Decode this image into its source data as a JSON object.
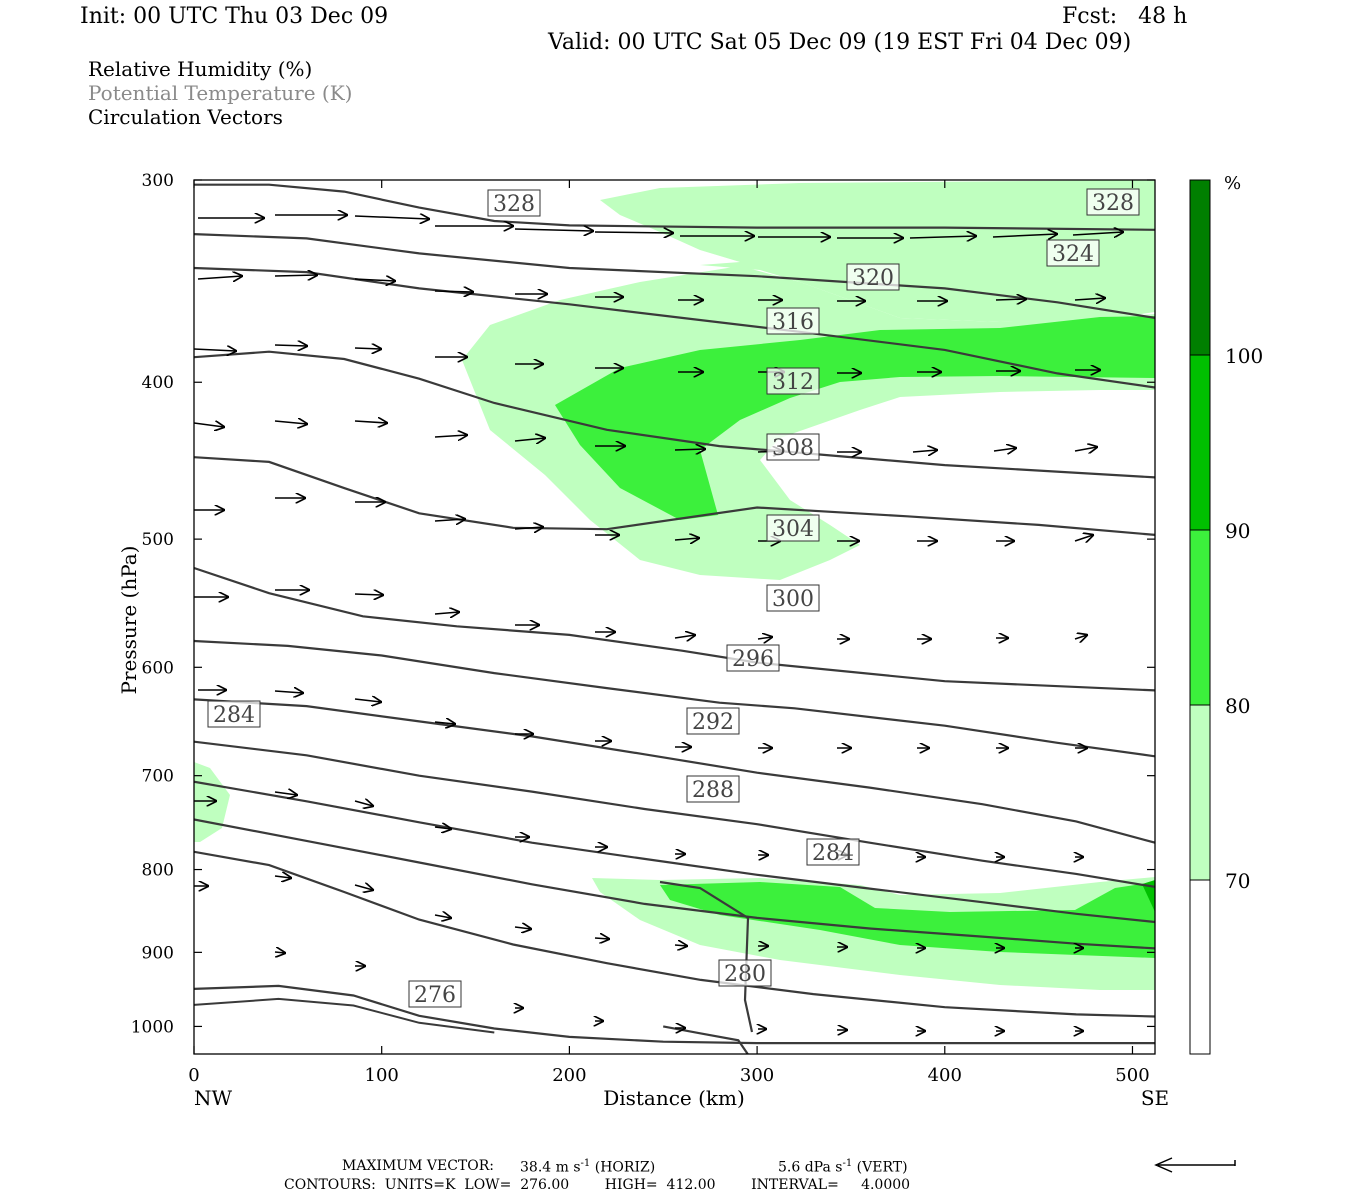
{
  "header": {
    "init": "Init: 00 UTC Thu 03 Dec 09",
    "fcst": "Fcst:   48 h",
    "valid": "Valid: 00 UTC Sat 05 Dec 09 (19 EST Fri 04 Dec 09)"
  },
  "legend": {
    "line1": "Relative Humidity (%)",
    "line2": "Potential Temperature (K)",
    "line3": "Circulation Vectors"
  },
  "footer": {
    "max_vector_label": "MAXIMUM VECTOR:",
    "horiz": "38.4 m s",
    "horiz_tag": "(HORIZ)",
    "vert": "5.6 dPa s",
    "vert_tag": "(VERT)",
    "exponent": "-1",
    "contours": "CONTOURS:  UNITS=K  LOW=  276.00        HIGH=  412.00        INTERVAL=     4.0000"
  },
  "colors": {
    "rh_70": "#bfffbf",
    "rh_80": "#3cf03c",
    "rh_90": "#00c000",
    "rh_100": "#007f00",
    "contour": "#3a3a3a",
    "vector": "#000000"
  },
  "colorbar": {
    "unit": "%",
    "labels": [
      "70",
      "80",
      "90",
      "100"
    ]
  },
  "chart_data": {
    "type": "cross-section",
    "xlabel": "Distance (km)",
    "ylabel": "Pressure (hPa)",
    "xlim": [
      0,
      512
    ],
    "ylim_hpa": [
      1040,
      300
    ],
    "y_log_scale": true,
    "x_ticks": [
      "0",
      "100",
      "200",
      "300",
      "400",
      "500"
    ],
    "x_tick_values": [
      0,
      100,
      200,
      300,
      400,
      500
    ],
    "y_ticks": [
      "300",
      "400",
      "500",
      "600",
      "700",
      "800",
      "900",
      "1000"
    ],
    "y_tick_values": [
      300,
      400,
      500,
      600,
      700,
      800,
      900,
      1000
    ],
    "x_end_labels": [
      "NW",
      "SE"
    ],
    "theta_contours": [
      {
        "value": 328,
        "points": [
          [
            0,
            302
          ],
          [
            40,
            302
          ],
          [
            80,
            305
          ],
          [
            120,
            312
          ],
          [
            160,
            318
          ],
          [
            200,
            320
          ],
          [
            300,
            321
          ],
          [
            400,
            321
          ],
          [
            512,
            322
          ]
        ]
      },
      {
        "value": 324,
        "points": [
          [
            0,
            324
          ],
          [
            60,
            326
          ],
          [
            120,
            333
          ],
          [
            200,
            340
          ],
          [
            300,
            344
          ],
          [
            400,
            350
          ],
          [
            460,
            357
          ],
          [
            512,
            365
          ]
        ]
      },
      {
        "value": 320,
        "points": [
          [
            0,
            340
          ],
          [
            60,
            342
          ],
          [
            120,
            350
          ],
          [
            200,
            358
          ],
          [
            260,
            365
          ],
          [
            320,
            372
          ],
          [
            400,
            382
          ],
          [
            460,
            395
          ],
          [
            512,
            403
          ]
        ]
      },
      {
        "value": 316,
        "points": [
          [
            0,
            386
          ],
          [
            40,
            383
          ],
          [
            80,
            387
          ],
          [
            120,
            398
          ],
          [
            160,
            412
          ],
          [
            220,
            428
          ],
          [
            280,
            438
          ],
          [
            320,
            442
          ],
          [
            400,
            450
          ],
          [
            512,
            458
          ]
        ]
      },
      {
        "value": 312,
        "points": [
          [
            0,
            445
          ],
          [
            40,
            448
          ],
          [
            80,
            465
          ],
          [
            120,
            482
          ],
          [
            170,
            492
          ],
          [
            220,
            493
          ],
          [
            300,
            478
          ],
          [
            380,
            484
          ],
          [
            450,
            490
          ],
          [
            512,
            497
          ]
        ]
      },
      {
        "value": 308,
        "points": [
          [
            0,
            521
          ],
          [
            40,
            540
          ],
          [
            90,
            558
          ],
          [
            140,
            566
          ],
          [
            200,
            573
          ],
          [
            260,
            586
          ],
          [
            300,
            596
          ],
          [
            400,
            612
          ],
          [
            512,
            620
          ]
        ]
      },
      {
        "value": 304,
        "points": [
          [
            0,
            578
          ],
          [
            50,
            582
          ],
          [
            100,
            590
          ],
          [
            160,
            605
          ],
          [
            220,
            618
          ],
          [
            280,
            631
          ],
          [
            320,
            636
          ],
          [
            400,
            652
          ],
          [
            460,
            668
          ],
          [
            512,
            681
          ]
        ]
      },
      {
        "value": 300,
        "points": [
          [
            0,
            628
          ],
          [
            60,
            634
          ],
          [
            120,
            648
          ],
          [
            180,
            662
          ],
          [
            240,
            679
          ],
          [
            300,
            697
          ],
          [
            360,
            712
          ],
          [
            420,
            729
          ],
          [
            470,
            747
          ],
          [
            512,
            770
          ]
        ]
      },
      {
        "value": 296,
        "points": [
          [
            0,
            667
          ],
          [
            60,
            680
          ],
          [
            120,
            700
          ],
          [
            180,
            716
          ],
          [
            240,
            734
          ],
          [
            300,
            750
          ],
          [
            360,
            770
          ],
          [
            420,
            790
          ],
          [
            470,
            805
          ],
          [
            512,
            820
          ]
        ]
      },
      {
        "value": 292,
        "points": [
          [
            0,
            706
          ],
          [
            60,
            726
          ],
          [
            120,
            748
          ],
          [
            180,
            770
          ],
          [
            240,
            788
          ],
          [
            300,
            806
          ],
          [
            360,
            822
          ],
          [
            420,
            838
          ],
          [
            470,
            852
          ],
          [
            512,
            862
          ]
        ]
      },
      {
        "value": 288,
        "points": [
          [
            0,
            745
          ],
          [
            60,
            768
          ],
          [
            120,
            792
          ],
          [
            180,
            817
          ],
          [
            240,
            840
          ],
          [
            300,
            857
          ],
          [
            360,
            870
          ],
          [
            420,
            880
          ],
          [
            470,
            889
          ],
          [
            512,
            895
          ]
        ]
      },
      {
        "value": 284,
        "points": [
          [
            0,
            780
          ],
          [
            40,
            795
          ],
          [
            80,
            826
          ],
          [
            120,
            859
          ],
          [
            170,
            890
          ],
          [
            220,
            914
          ],
          [
            270,
            936
          ],
          [
            330,
            955
          ],
          [
            400,
            973
          ],
          [
            470,
            983
          ],
          [
            512,
            986
          ]
        ]
      },
      {
        "value": 280,
        "points": [
          [
            250,
            1000
          ],
          [
            270,
            1010
          ],
          [
            290,
            1020
          ],
          [
            295,
            1040
          ]
        ]
      },
      {
        "value": 276,
        "points": [
          [
            0,
            948
          ],
          [
            45,
            944
          ],
          [
            85,
            957
          ],
          [
            120,
            985
          ],
          [
            160,
            1003
          ],
          [
            200,
            1015
          ],
          [
            250,
            1022
          ],
          [
            300,
            1024
          ],
          [
            400,
            1024
          ],
          [
            512,
            1024
          ]
        ]
      }
    ],
    "rh_levels": [
      70,
      80,
      90,
      100
    ],
    "vector_horizontal_max_m_s": 38.4,
    "vector_vertical_max_dPa_s": 5.6
  }
}
